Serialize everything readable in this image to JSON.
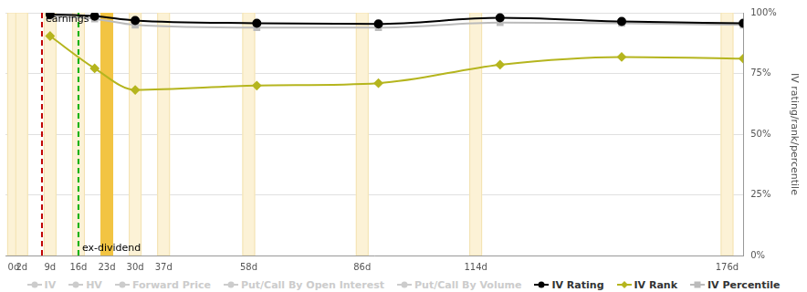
{
  "chart_data": {
    "type": "line",
    "y_label": "IV rating/rank/percentile",
    "x": [
      9,
      20,
      30,
      60,
      90,
      120,
      150,
      180
    ],
    "series": [
      {
        "name": "IV Rating",
        "color": "#000000",
        "marker": "circle",
        "values": [
          99.3,
          98.6,
          96.8,
          95.7,
          95.4,
          97.9,
          96.4,
          95.7
        ]
      },
      {
        "name": "IV Rank",
        "color": "#b5b51e",
        "marker": "diamond",
        "values": [
          90.4,
          77.1,
          68.2,
          70,
          71,
          78.6,
          81.8,
          81.1
        ]
      },
      {
        "name": "IV Percentile",
        "color": "#bbbbbb",
        "marker": "square",
        "values": [
          98.6,
          97.5,
          95,
          93.9,
          93.9,
          96,
          95.7,
          95
        ]
      }
    ],
    "legend_inactive": [
      "IV",
      "HV",
      "Forward Price",
      "Put/Call By Open Interest",
      "Put/Call By Volume"
    ],
    "xlim": [
      -2,
      180
    ],
    "xticks": [
      {
        "value": 0,
        "label": "0d"
      },
      {
        "value": 2,
        "label": "2d"
      },
      {
        "value": 9,
        "label": "9d"
      },
      {
        "value": 16,
        "label": "16d"
      },
      {
        "value": 23,
        "label": "23d"
      },
      {
        "value": 30,
        "label": "30d"
      },
      {
        "value": 37,
        "label": "37d"
      },
      {
        "value": 58,
        "label": "58d"
      },
      {
        "value": 86,
        "label": "86d"
      },
      {
        "value": 114,
        "label": "114d"
      },
      {
        "value": 176,
        "label": "176d"
      }
    ],
    "ylim": [
      0,
      100
    ],
    "yticks": [
      {
        "value": 0,
        "label": "0%"
      },
      {
        "value": 25,
        "label": "25%"
      },
      {
        "value": 50,
        "label": "50%"
      },
      {
        "value": 75,
        "label": "75%"
      },
      {
        "value": 100,
        "label": "100%"
      }
    ],
    "expiration_bands": [
      0,
      2,
      9,
      16,
      23,
      30,
      37,
      58,
      86,
      114,
      176
    ],
    "highlight_band": 23,
    "annotations": [
      {
        "label": "earnings",
        "x": 7,
        "color": "#c00000"
      },
      {
        "label": "ex-dividend",
        "x": 16,
        "color": "#00b000"
      }
    ],
    "grid": true,
    "legend": "bottom"
  }
}
